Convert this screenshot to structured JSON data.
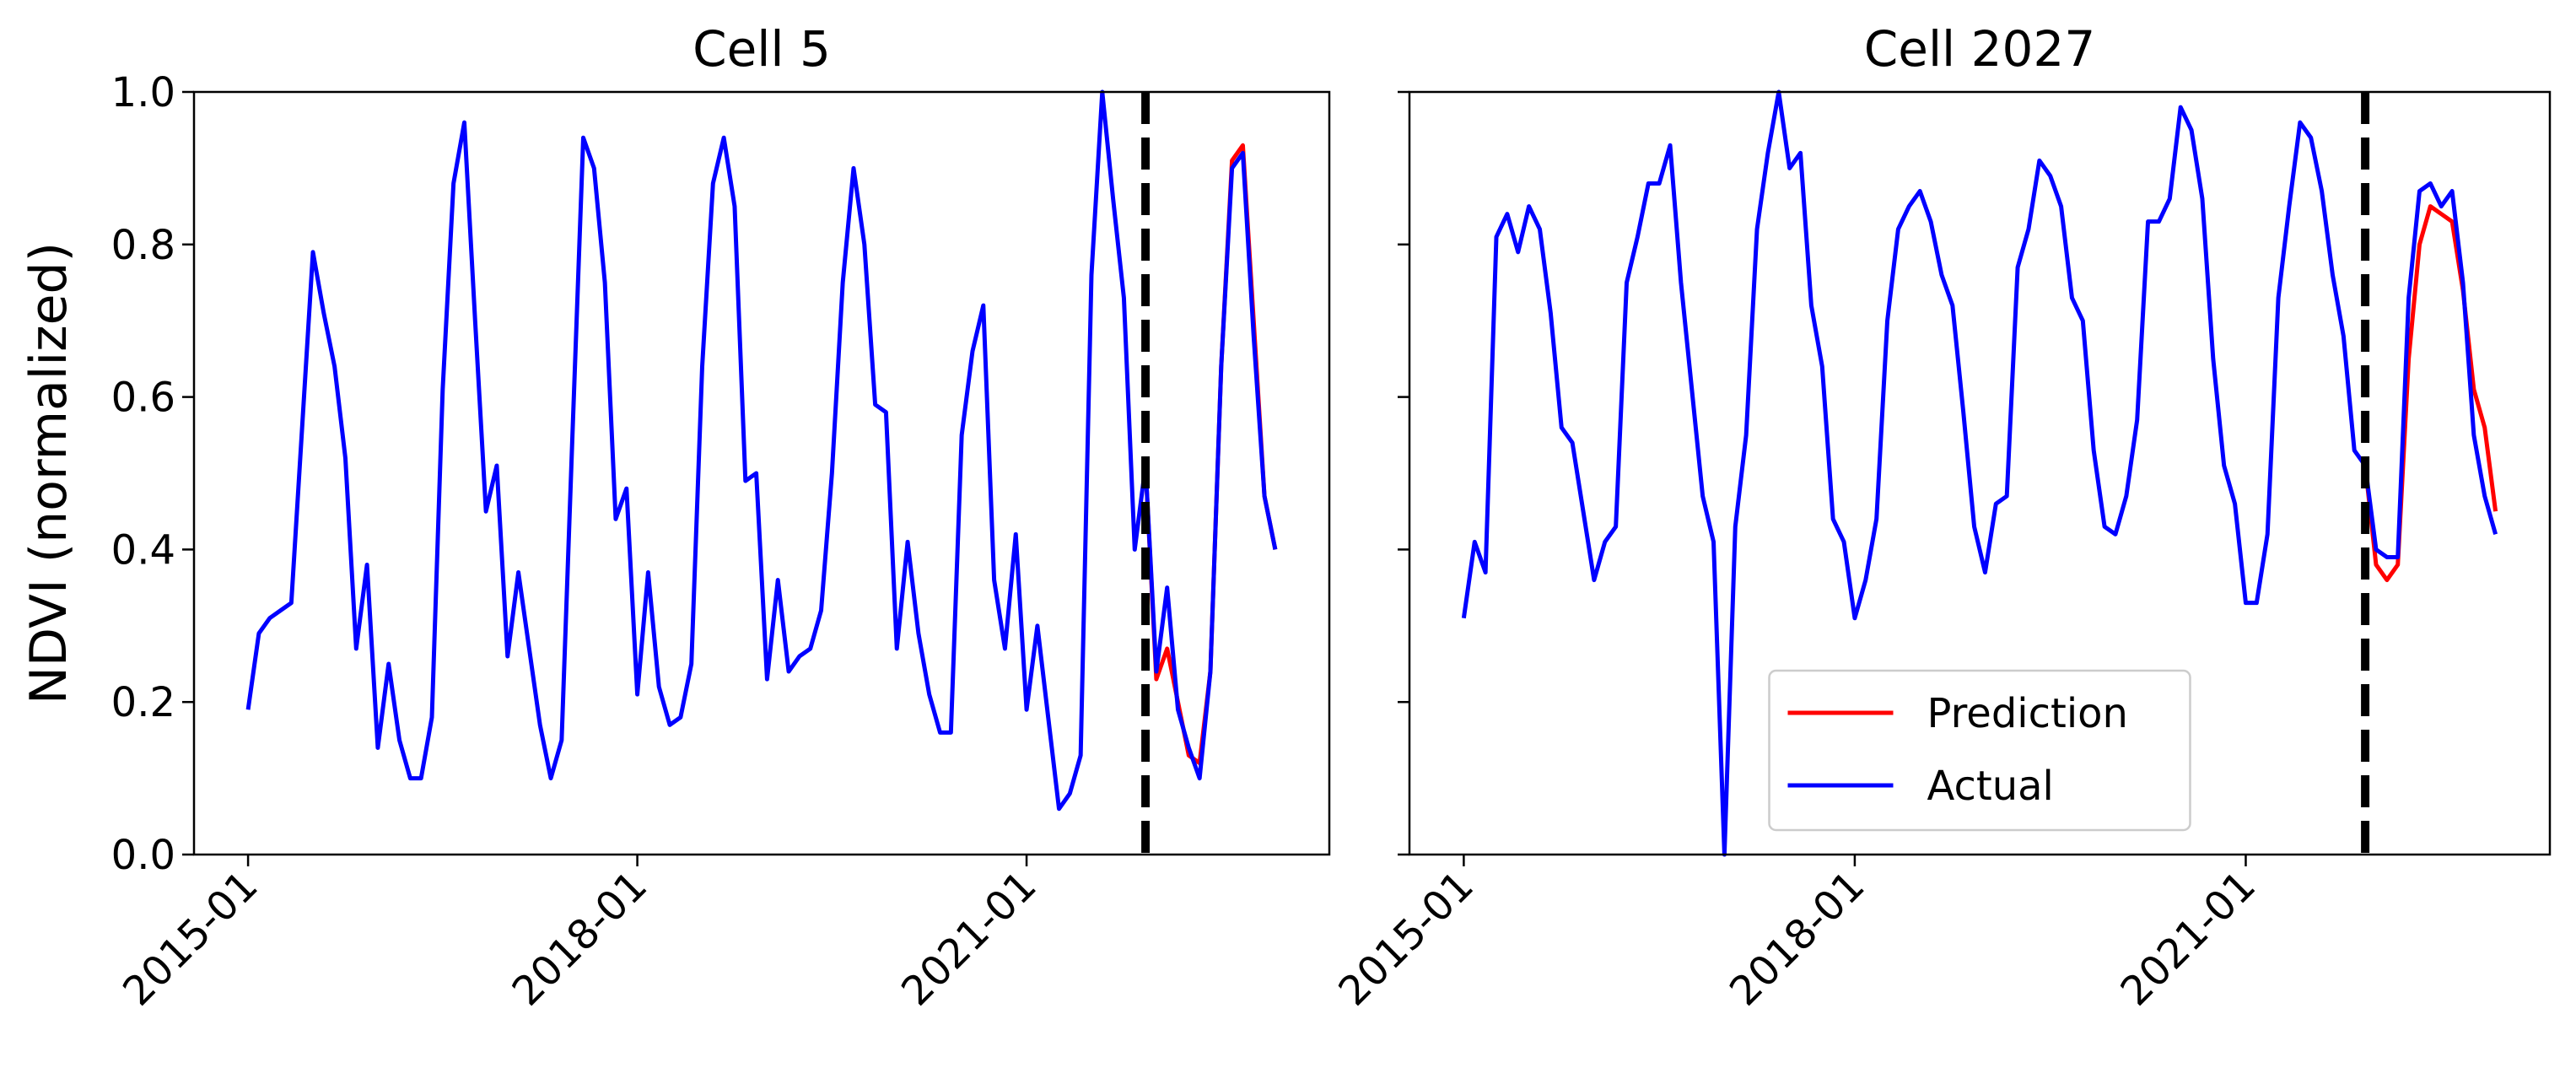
{
  "chart_data": [
    {
      "type": "line",
      "title": "Cell 5",
      "ylabel": "NDVI (normalized)",
      "x": [
        "2015-01",
        "2015-02",
        "2015-03",
        "2015-04",
        "2015-05",
        "2015-06",
        "2015-07",
        "2015-08",
        "2015-09",
        "2015-10",
        "2015-11",
        "2015-12",
        "2016-01",
        "2016-02",
        "2016-03",
        "2016-04",
        "2016-05",
        "2016-06",
        "2016-07",
        "2016-08",
        "2016-09",
        "2016-10",
        "2016-11",
        "2016-12",
        "2017-01",
        "2017-02",
        "2017-03",
        "2017-04",
        "2017-05",
        "2017-06",
        "2017-07",
        "2017-08",
        "2017-09",
        "2017-10",
        "2017-11",
        "2017-12",
        "2018-01",
        "2018-02",
        "2018-03",
        "2018-04",
        "2018-05",
        "2018-06",
        "2018-07",
        "2018-08",
        "2018-09",
        "2018-10",
        "2018-11",
        "2018-12",
        "2019-01",
        "2019-02",
        "2019-03",
        "2019-04",
        "2019-05",
        "2019-06",
        "2019-07",
        "2019-08",
        "2019-09",
        "2019-10",
        "2019-11",
        "2019-12",
        "2020-01",
        "2020-02",
        "2020-03",
        "2020-04",
        "2020-05",
        "2020-06",
        "2020-07",
        "2020-08",
        "2020-09",
        "2020-10",
        "2020-11",
        "2020-12",
        "2021-01",
        "2021-02",
        "2021-03",
        "2021-04",
        "2021-05",
        "2021-06",
        "2021-07",
        "2021-08",
        "2021-09",
        "2021-10",
        "2021-11",
        "2021-12",
        "2022-01",
        "2022-02",
        "2022-03",
        "2022-04",
        "2022-05",
        "2022-06",
        "2022-07",
        "2022-08",
        "2022-09",
        "2022-10",
        "2022-11",
        "2022-12"
      ],
      "series": [
        {
          "name": "Prediction",
          "color": "#ff0000",
          "values": [
            null,
            null,
            null,
            null,
            null,
            null,
            null,
            null,
            null,
            null,
            null,
            null,
            null,
            null,
            null,
            null,
            null,
            null,
            null,
            null,
            null,
            null,
            null,
            null,
            null,
            null,
            null,
            null,
            null,
            null,
            null,
            null,
            null,
            null,
            null,
            null,
            null,
            null,
            null,
            null,
            null,
            null,
            null,
            null,
            null,
            null,
            null,
            null,
            null,
            null,
            null,
            null,
            null,
            null,
            null,
            null,
            null,
            null,
            null,
            null,
            null,
            null,
            null,
            null,
            null,
            null,
            null,
            null,
            null,
            null,
            null,
            null,
            null,
            null,
            null,
            null,
            null,
            null,
            null,
            null,
            null,
            null,
            null,
            0.51,
            0.23,
            0.27,
            0.2,
            0.13,
            0.12,
            0.24,
            0.64,
            0.91,
            0.93,
            0.7,
            0.47,
            0.4
          ]
        },
        {
          "name": "Actual",
          "color": "#0000ff",
          "values": [
            0.19,
            0.29,
            0.31,
            0.32,
            0.33,
            0.56,
            0.79,
            0.71,
            0.64,
            0.52,
            0.27,
            0.38,
            0.14,
            0.25,
            0.15,
            0.1,
            0.1,
            0.18,
            0.61,
            0.88,
            0.96,
            0.7,
            0.45,
            0.51,
            0.26,
            0.37,
            0.27,
            0.17,
            0.1,
            0.15,
            0.55,
            0.94,
            0.9,
            0.75,
            0.44,
            0.48,
            0.21,
            0.37,
            0.22,
            0.17,
            0.18,
            0.25,
            0.64,
            0.88,
            0.94,
            0.85,
            0.49,
            0.5,
            0.23,
            0.36,
            0.24,
            0.26,
            0.27,
            0.32,
            0.5,
            0.75,
            0.9,
            0.8,
            0.59,
            0.58,
            0.27,
            0.41,
            0.29,
            0.21,
            0.16,
            0.16,
            0.55,
            0.66,
            0.72,
            0.36,
            0.27,
            0.42,
            0.19,
            0.3,
            0.18,
            0.06,
            0.08,
            0.13,
            0.76,
            1.0,
            0.86,
            0.73,
            0.4,
            0.51,
            0.24,
            0.35,
            0.19,
            0.14,
            0.1,
            0.24,
            0.64,
            0.9,
            0.92,
            0.68,
            0.47,
            0.4
          ]
        }
      ],
      "vline": "2021-12",
      "xlim": [
        "2014-08",
        "2023-05"
      ],
      "xticks": [
        "2015-01",
        "2018-01",
        "2021-01"
      ],
      "ylim": [
        0,
        1
      ],
      "yticks": [
        {
          "value": 0,
          "label": "0.0"
        },
        0.2,
        0.4,
        0.6,
        0.8,
        {
          "value": 1,
          "label": "1.0"
        }
      ],
      "y_tick_labels": true
    },
    {
      "type": "line",
      "title": "Cell 2027",
      "x": [
        "2015-01",
        "2015-02",
        "2015-03",
        "2015-04",
        "2015-05",
        "2015-06",
        "2015-07",
        "2015-08",
        "2015-09",
        "2015-10",
        "2015-11",
        "2015-12",
        "2016-01",
        "2016-02",
        "2016-03",
        "2016-04",
        "2016-05",
        "2016-06",
        "2016-07",
        "2016-08",
        "2016-09",
        "2016-10",
        "2016-11",
        "2016-12",
        "2017-01",
        "2017-02",
        "2017-03",
        "2017-04",
        "2017-05",
        "2017-06",
        "2017-07",
        "2017-08",
        "2017-09",
        "2017-10",
        "2017-11",
        "2017-12",
        "2018-01",
        "2018-02",
        "2018-03",
        "2018-04",
        "2018-05",
        "2018-06",
        "2018-07",
        "2018-08",
        "2018-09",
        "2018-10",
        "2018-11",
        "2018-12",
        "2019-01",
        "2019-02",
        "2019-03",
        "2019-04",
        "2019-05",
        "2019-06",
        "2019-07",
        "2019-08",
        "2019-09",
        "2019-10",
        "2019-11",
        "2019-12",
        "2020-01",
        "2020-02",
        "2020-03",
        "2020-04",
        "2020-05",
        "2020-06",
        "2020-07",
        "2020-08",
        "2020-09",
        "2020-10",
        "2020-11",
        "2020-12",
        "2021-01",
        "2021-02",
        "2021-03",
        "2021-04",
        "2021-05",
        "2021-06",
        "2021-07",
        "2021-08",
        "2021-09",
        "2021-10",
        "2021-11",
        "2021-12",
        "2022-01",
        "2022-02",
        "2022-03",
        "2022-04",
        "2022-05",
        "2022-06",
        "2022-07",
        "2022-08",
        "2022-09",
        "2022-10",
        "2022-11",
        "2022-12"
      ],
      "series": [
        {
          "name": "Prediction",
          "color": "#ff0000",
          "values": [
            null,
            null,
            null,
            null,
            null,
            null,
            null,
            null,
            null,
            null,
            null,
            null,
            null,
            null,
            null,
            null,
            null,
            null,
            null,
            null,
            null,
            null,
            null,
            null,
            null,
            null,
            null,
            null,
            null,
            null,
            null,
            null,
            null,
            null,
            null,
            null,
            null,
            null,
            null,
            null,
            null,
            null,
            null,
            null,
            null,
            null,
            null,
            null,
            null,
            null,
            null,
            null,
            null,
            null,
            null,
            null,
            null,
            null,
            null,
            null,
            null,
            null,
            null,
            null,
            null,
            null,
            null,
            null,
            null,
            null,
            null,
            null,
            null,
            null,
            null,
            null,
            null,
            null,
            null,
            null,
            null,
            null,
            null,
            0.51,
            0.38,
            0.36,
            0.38,
            0.65,
            0.8,
            0.85,
            0.84,
            0.83,
            0.74,
            0.61,
            0.56,
            0.45
          ]
        },
        {
          "name": "Actual",
          "color": "#0000ff",
          "values": [
            0.31,
            0.41,
            0.37,
            0.81,
            0.84,
            0.79,
            0.85,
            0.82,
            0.71,
            0.56,
            0.54,
            0.45,
            0.36,
            0.41,
            0.43,
            0.75,
            0.81,
            0.88,
            0.88,
            0.93,
            0.75,
            0.61,
            0.47,
            0.41,
            0.0,
            0.43,
            0.55,
            0.82,
            0.92,
            1.0,
            0.9,
            0.92,
            0.72,
            0.64,
            0.44,
            0.41,
            0.31,
            0.36,
            0.44,
            0.7,
            0.82,
            0.85,
            0.87,
            0.83,
            0.76,
            0.72,
            0.58,
            0.43,
            0.37,
            0.46,
            0.47,
            0.77,
            0.82,
            0.91,
            0.89,
            0.85,
            0.73,
            0.7,
            0.53,
            0.43,
            0.42,
            0.47,
            0.57,
            0.83,
            0.83,
            0.86,
            0.98,
            0.95,
            0.86,
            0.65,
            0.51,
            0.46,
            0.33,
            0.33,
            0.42,
            0.73,
            0.85,
            0.96,
            0.94,
            0.87,
            0.76,
            0.68,
            0.53,
            0.51,
            0.4,
            0.39,
            0.39,
            0.73,
            0.87,
            0.88,
            0.85,
            0.87,
            0.75,
            0.55,
            0.47,
            0.42
          ]
        }
      ],
      "vline": "2021-12",
      "legend": "lower center",
      "xlim": [
        "2014-08",
        "2023-05"
      ],
      "xticks": [
        "2015-01",
        "2018-01",
        "2021-01"
      ],
      "ylim": [
        0,
        1
      ],
      "yticks": [
        {
          "value": 0,
          "label": "0.0"
        },
        0.2,
        0.4,
        0.6,
        0.8,
        {
          "value": 1,
          "label": "1.0"
        }
      ],
      "y_tick_labels": false
    }
  ]
}
